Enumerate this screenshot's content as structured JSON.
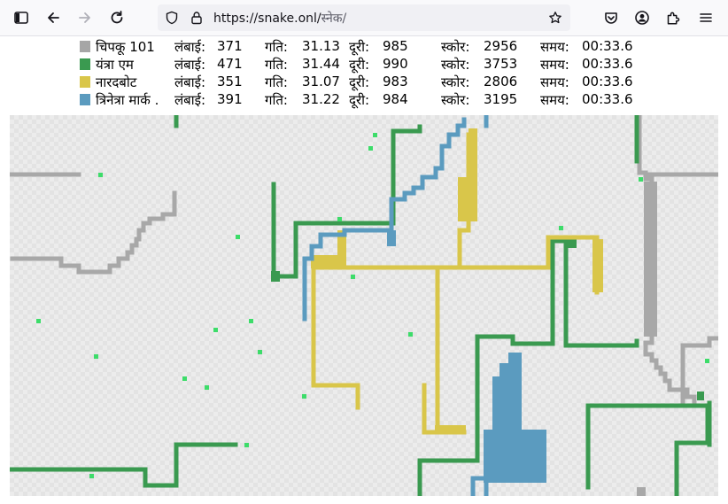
{
  "browser": {
    "url_host": "https://snake.onl/",
    "url_path": "स्नेक/"
  },
  "labels": {
    "length": "लंबाई:",
    "speed": "गति:",
    "distance": "दूरी:",
    "score": "स्कोर:",
    "time": "समय:"
  },
  "players": [
    {
      "name": "चिपकू 101",
      "length": "371",
      "speed": "31.13",
      "distance": "985",
      "score": "2956",
      "time": "00:33.6",
      "color": "#a6a6a6"
    },
    {
      "name": "यंत्रा एम",
      "length": "471",
      "speed": "31.44",
      "distance": "990",
      "score": "3753",
      "time": "00:33.6",
      "color": "#3a9a50"
    },
    {
      "name": "नारदबोट",
      "length": "351",
      "speed": "31.07",
      "distance": "983",
      "score": "2806",
      "time": "00:33.6",
      "color": "#d9c64a"
    },
    {
      "name": "त्रिनेत्रा मार्क .",
      "length": "391",
      "speed": "31.22",
      "distance": "984",
      "score": "3195",
      "time": "00:33.6",
      "color": "#5b9bbf"
    }
  ]
}
